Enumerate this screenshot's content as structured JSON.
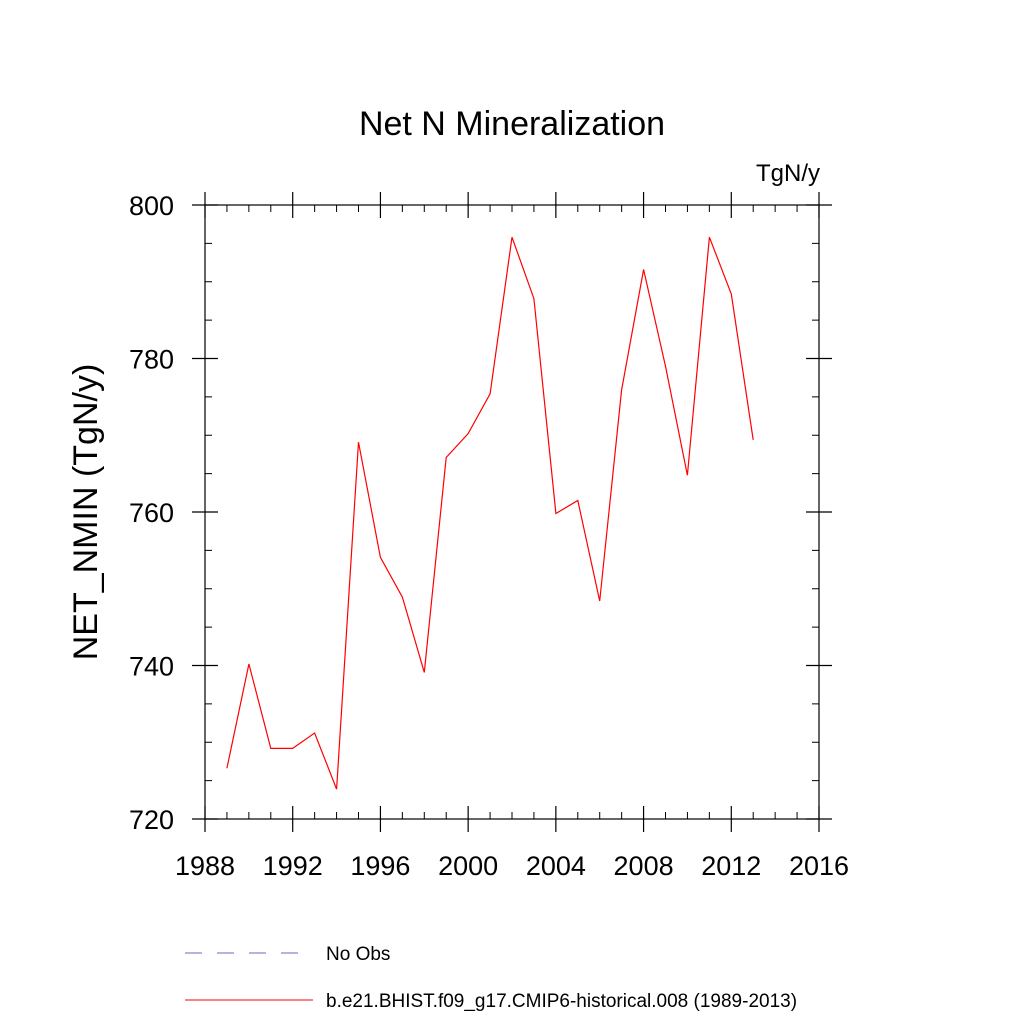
{
  "chart_data": {
    "type": "line",
    "title": "Net N Mineralization",
    "units": "TgN/y",
    "ylabel": "NET_NMIN  (TgN/y)",
    "xlabel": "",
    "xlim": [
      1988,
      2016
    ],
    "ylim": [
      720,
      800
    ],
    "x_ticks": [
      1988,
      1992,
      1996,
      2000,
      2004,
      2008,
      2012,
      2016
    ],
    "y_ticks": [
      720,
      740,
      760,
      780,
      800
    ],
    "x_minor_step": 1,
    "y_minor_step": 5,
    "series": [
      {
        "name": "b.e21.BHIST.f09_g17.CMIP6-historical.008 (1989-2013)",
        "color": "#ff0000",
        "style": "solid",
        "x": [
          1989,
          1990,
          1991,
          1992,
          1993,
          1994,
          1995,
          1996,
          1997,
          1998,
          1999,
          2000,
          2001,
          2002,
          2003,
          2004,
          2005,
          2006,
          2007,
          2008,
          2009,
          2010,
          2011,
          2012,
          2013
        ],
        "values": [
          726.6,
          740.2,
          729.2,
          729.2,
          731.2,
          723.9,
          769.1,
          754.1,
          748.9,
          739.1,
          767.1,
          770.2,
          775.4,
          795.8,
          787.8,
          759.8,
          761.5,
          748.4,
          775.9,
          791.6,
          779.0,
          764.8,
          795.8,
          788.4,
          769.4
        ]
      }
    ],
    "legend": [
      {
        "label": "No Obs",
        "color": "#6a6ac8",
        "style": "dashed"
      },
      {
        "label": "b.e21.BHIST.f09_g17.CMIP6-historical.008 (1989-2013)",
        "color": "#ff0000",
        "style": "solid"
      }
    ]
  }
}
